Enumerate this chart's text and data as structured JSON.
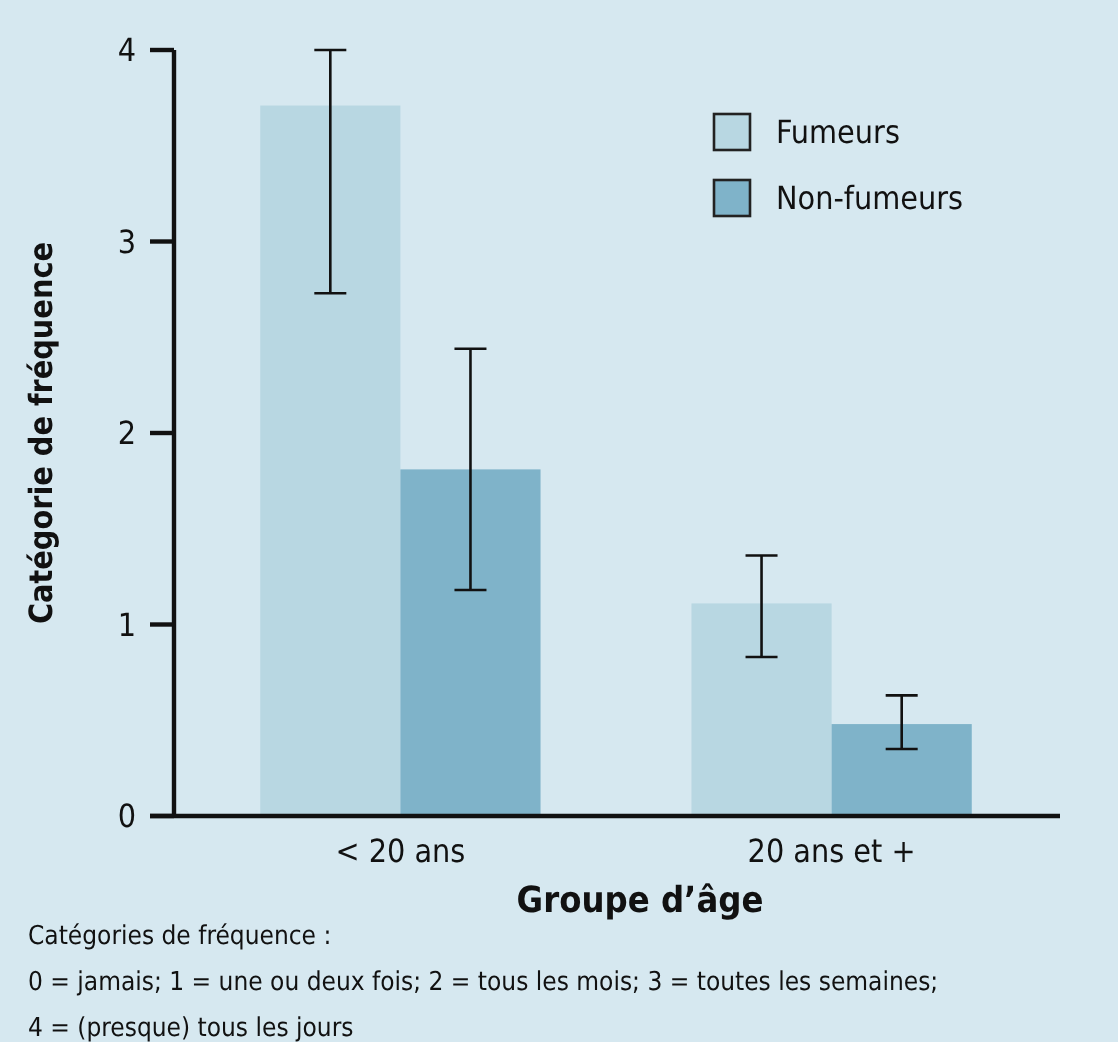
{
  "chart_data": {
    "type": "bar",
    "categories": [
      "< 20 ans",
      "20 ans et +"
    ],
    "series": [
      {
        "name": "Fumeurs",
        "color": "#b8d7e2",
        "values": [
          3.71,
          1.11
        ],
        "errors": [
          [
            2.73,
            4.0
          ],
          [
            0.83,
            1.36
          ]
        ]
      },
      {
        "name": "Non-fumeurs",
        "color": "#7fb3c9",
        "values": [
          1.81,
          0.48
        ],
        "errors": [
          [
            1.18,
            2.44
          ],
          [
            0.35,
            0.63
          ]
        ]
      }
    ],
    "xlabel": "Groupe d’âge",
    "ylabel": "Catégorie de fréquence",
    "ylim": [
      0,
      4
    ],
    "yticks": [
      0,
      1,
      2,
      3,
      4
    ],
    "grid": false,
    "legend": "top right",
    "annotations": [
      "Catégories de fréquence :",
      "0 = jamais;  1 = une ou deux fois;  2 = tous les mois;  3 = toutes les semaines;",
      "4 = (presque) tous les jours"
    ]
  }
}
